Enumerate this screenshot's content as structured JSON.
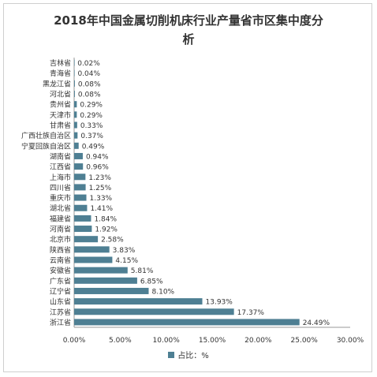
{
  "chart_data": {
    "type": "bar",
    "orientation": "horizontal",
    "title_line1": "2018年中国金属切削机床行业产量省市区集中度分",
    "title_line2": "析",
    "categories": [
      "吉林省",
      "青海省",
      "黑龙江省",
      "河北省",
      "贵州省",
      "天津市",
      "甘肃省",
      "广西壮族自治区",
      "宁夏回族自治区",
      "湖南省",
      "江西省",
      "上海市",
      "四川省",
      "重庆市",
      "湖北省",
      "福建省",
      "河南省",
      "北京市",
      "陕西省",
      "云南省",
      "安徽省",
      "广东省",
      "辽宁省",
      "山东省",
      "江苏省",
      "浙江省"
    ],
    "values": [
      0.02,
      0.04,
      0.08,
      0.08,
      0.29,
      0.29,
      0.33,
      0.37,
      0.49,
      0.94,
      0.96,
      1.23,
      1.25,
      1.33,
      1.41,
      1.84,
      1.92,
      2.58,
      3.83,
      4.15,
      5.81,
      6.85,
      8.1,
      13.93,
      17.37,
      24.49
    ],
    "data_labels": [
      "0.02%",
      "0.04%",
      "0.08%",
      "0.08%",
      "0.29%",
      "0.29%",
      "0.33%",
      "0.37%",
      "0.49%",
      "0.94%",
      "0.96%",
      "1.23%",
      "1.25%",
      "1.33%",
      "1.41%",
      "1.84%",
      "1.92%",
      "2.58%",
      "3.83%",
      "4.15%",
      "5.81%",
      "6.85%",
      "8.10%",
      "13.93%",
      "17.37%",
      "24.49%"
    ],
    "xlim": [
      0,
      30
    ],
    "xticks": [
      0,
      5,
      10,
      15,
      20,
      25,
      30
    ],
    "xtick_labels": [
      "0.00%",
      "5.00%",
      "10.00%",
      "15.00%",
      "20.00%",
      "25.00%",
      "30.00%"
    ],
    "series_name": "占比：%",
    "legend": "bottom",
    "grid": false,
    "bar_color": "#4e7f93"
  }
}
